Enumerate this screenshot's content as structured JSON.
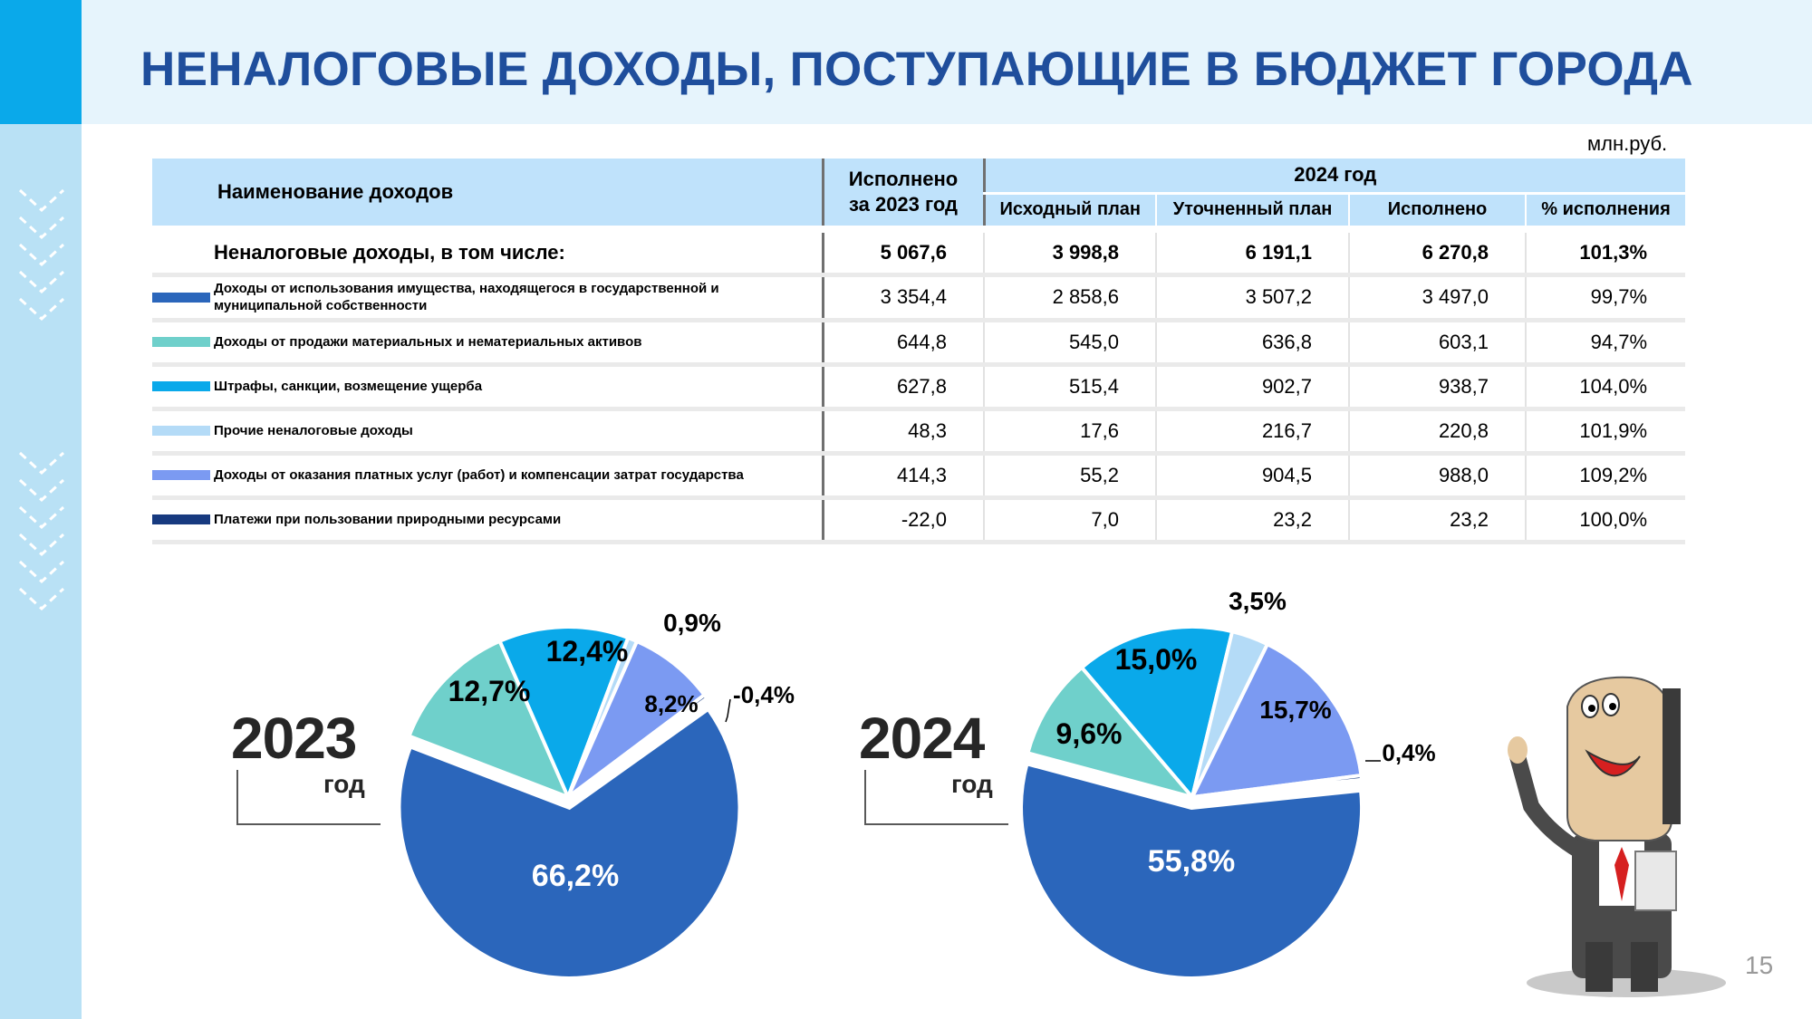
{
  "title": "НЕНАЛОГОВЫЕ ДОХОДЫ, ПОСТУПАЮЩИЕ В БЮДЖЕТ ГОРОДА",
  "unit": "млн.руб.",
  "page_number": "15",
  "colors": {
    "title": "#1f4e9c",
    "header_fill": "#bfe2fb",
    "accent_bar": "#0aa9ea"
  },
  "table": {
    "headers": {
      "name": "Наименование  доходов",
      "executed_2023_line1": "Исполнено",
      "executed_2023_line2": "за 2023 год",
      "year_2024": "2024 год",
      "sub": [
        "Исходный план",
        "Уточненный план",
        "Исполнено",
        "% исполнения"
      ]
    },
    "rows": [
      {
        "name": "Неналоговые доходы, в том числе:",
        "color": "",
        "values": [
          "5 067,6",
          "3 998,8",
          "6 191,1",
          "6 270,8",
          "101,3%"
        ]
      },
      {
        "name": "Доходы от использования имущества, находящегося в государственной и муниципальной собственности",
        "color": "#2b66bb",
        "values": [
          "3 354,4",
          "2 858,6",
          "3 507,2",
          "3 497,0",
          "99,7%"
        ]
      },
      {
        "name": "Доходы от продажи материальных и нематериальных активов",
        "color": "#6fd0cb",
        "values": [
          "644,8",
          "545,0",
          "636,8",
          "603,1",
          "94,7%"
        ]
      },
      {
        "name": "Штрафы, санкции, возмещение ущерба",
        "color": "#0aa9ea",
        "values": [
          "627,8",
          "515,4",
          "902,7",
          "938,7",
          "104,0%"
        ]
      },
      {
        "name": "Прочие неналоговые доходы",
        "color": "#b4dbf7",
        "values": [
          "48,3",
          "17,6",
          "216,7",
          "220,8",
          "101,9%"
        ]
      },
      {
        "name": "Доходы от оказания платных услуг (работ) и компенсации затрат государства",
        "color": "#7b9af2",
        "values": [
          "414,3",
          "55,2",
          "904,5",
          "988,0",
          "109,2%"
        ]
      },
      {
        "name": "Платежи при пользовании природными ресурсами",
        "color": "#173a7f",
        "values": [
          "-22,0",
          "7,0",
          "23,2",
          "23,2",
          "100,0%"
        ]
      }
    ]
  },
  "chart_data": [
    {
      "type": "pie",
      "year_label": "2023",
      "year_sub": "год",
      "categories": [
        "Доходы от использования имущества, находящегося в государственной и муниципальной собственности",
        "Доходы от продажи материальных и нематериальных активов",
        "Штрафы, санкции, возмещение ущерба",
        "Прочие неналоговые доходы",
        "Доходы от оказания платных услуг (работ) и компенсации затрат государства",
        "Платежи при пользовании природными ресурсами"
      ],
      "values": [
        66.2,
        12.7,
        12.4,
        0.9,
        8.2,
        -0.4
      ],
      "labels": [
        "66,2%",
        "12,7%",
        "12,4%",
        "0,9%",
        "8,2%",
        "-0,4%"
      ],
      "colors": [
        "#2b66bb",
        "#6fd0cb",
        "#0aa9ea",
        "#b4dbf7",
        "#7b9af2",
        "#173a7f"
      ]
    },
    {
      "type": "pie",
      "year_label": "2024",
      "year_sub": "год",
      "categories": [
        "Доходы от использования имущества, находящегося в государственной и муниципальной собственности",
        "Доходы от продажи материальных и нематериальных активов",
        "Штрафы, санкции, возмещение ущерба",
        "Прочие неналоговые доходы",
        "Доходы от оказания платных услуг (работ) и компенсации затрат государства",
        "Платежи при пользовании природными ресурсами"
      ],
      "values": [
        55.8,
        9.6,
        15.0,
        3.5,
        15.7,
        0.4
      ],
      "labels": [
        "55,8%",
        "9,6%",
        "15,0%",
        "3,5%",
        "15,7%",
        "0,4%"
      ],
      "colors": [
        "#2b66bb",
        "#6fd0cb",
        "#0aa9ea",
        "#b4dbf7",
        "#7b9af2",
        "#173a7f"
      ]
    }
  ]
}
